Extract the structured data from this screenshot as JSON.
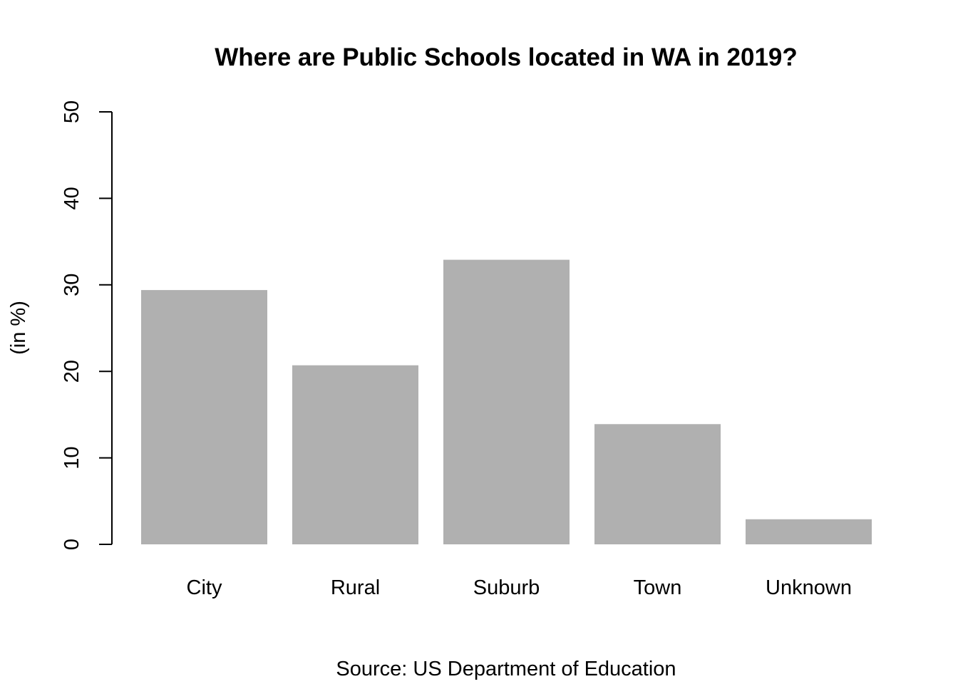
{
  "chart_data": {
    "type": "bar",
    "title": "Where are Public Schools located in WA in 2019?",
    "xlabel": "Source: US Department of Education",
    "ylabel": "(in %)",
    "categories": [
      "City",
      "Rural",
      "Suburb",
      "Town",
      "Unknown"
    ],
    "values": [
      29.4,
      20.7,
      32.9,
      13.9,
      2.9
    ],
    "ylim": [
      0,
      50
    ],
    "yticks": [
      "0",
      "10",
      "20",
      "30",
      "40",
      "50"
    ],
    "grid": false,
    "legend": "none",
    "bar_color": "#b0b0b0"
  }
}
